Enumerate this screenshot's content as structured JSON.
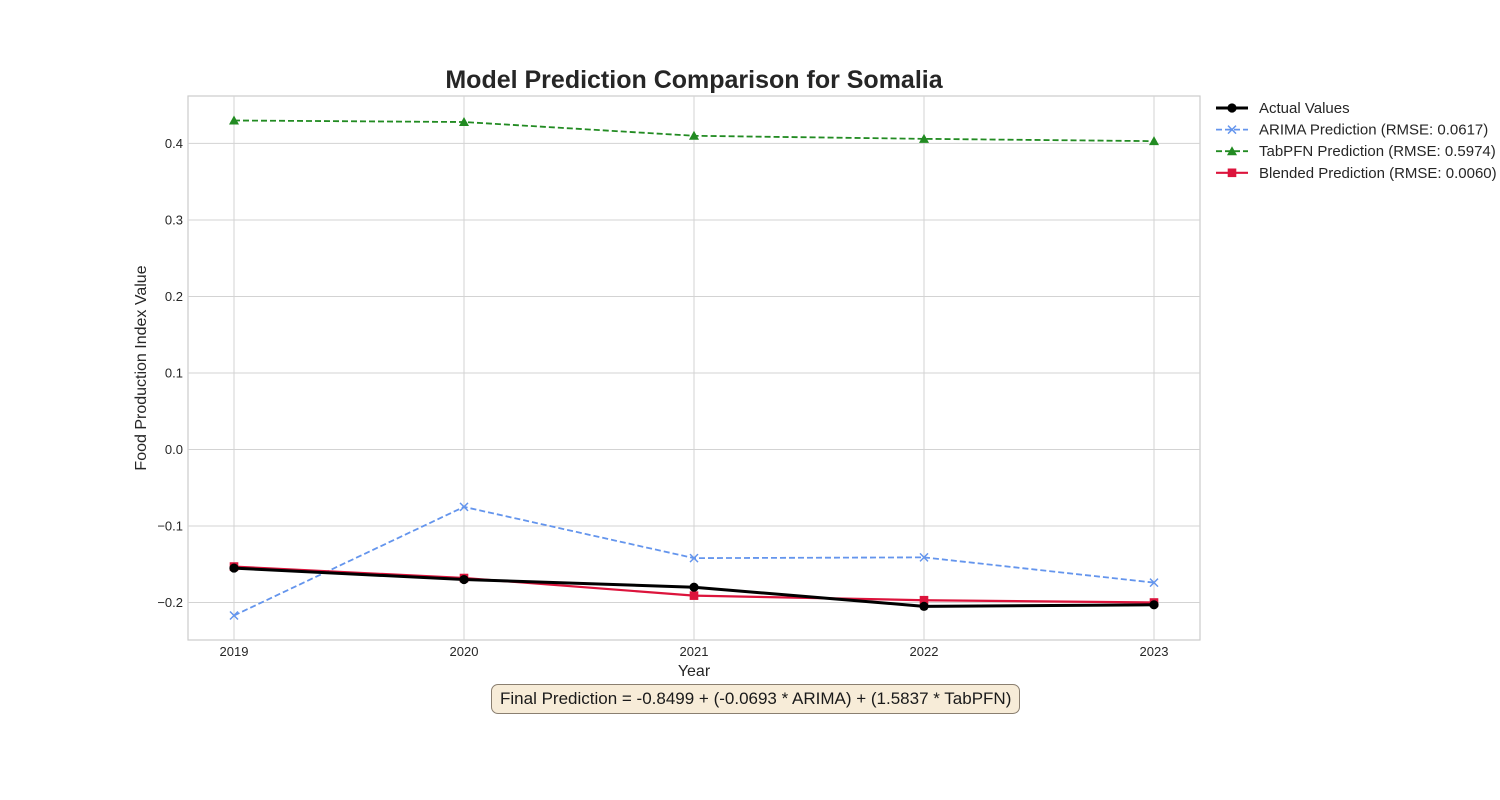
{
  "chart_data": {
    "type": "line",
    "title": "Model Prediction Comparison for Somalia",
    "xlabel": "Year",
    "ylabel": "Food Production Index Value",
    "x": [
      2019,
      2020,
      2021,
      2022,
      2023
    ],
    "x_ticks": [
      "2019",
      "2020",
      "2021",
      "2022",
      "2023"
    ],
    "xlim": [
      2018.8,
      2023.2
    ],
    "ylim": [
      -0.249,
      0.462
    ],
    "y_ticks": [
      0.4,
      0.3,
      0.2,
      0.1,
      0.0,
      -0.1,
      -0.2
    ],
    "y_tick_labels": [
      "0.4",
      "0.3",
      "0.2",
      "0.1",
      "0.0",
      "−0.1",
      "−0.2"
    ],
    "grid": true,
    "legend_position": "outside-top-right",
    "series": [
      {
        "name": "Actual Values",
        "values": [
          -0.155,
          -0.17,
          -0.18,
          -0.205,
          -0.203
        ],
        "color": "#000000",
        "marker": "circle",
        "dash": "solid",
        "width": 3
      },
      {
        "name": "ARIMA Prediction (RMSE: 0.0617)",
        "values": [
          -0.217,
          -0.075,
          -0.142,
          -0.141,
          -0.174
        ],
        "color": "#6495ed",
        "marker": "x",
        "dash": "dashed",
        "width": 1.8
      },
      {
        "name": "TabPFN Prediction (RMSE: 0.5974)",
        "values": [
          0.43,
          0.428,
          0.41,
          0.406,
          0.403
        ],
        "color": "#228b22",
        "marker": "triangle",
        "dash": "dashed",
        "width": 1.8
      },
      {
        "name": "Blended Prediction (RMSE: 0.0060)",
        "values": [
          -0.153,
          -0.168,
          -0.191,
          -0.197,
          -0.2
        ],
        "color": "#dc143c",
        "marker": "square",
        "dash": "solid",
        "width": 2.2
      }
    ],
    "annotation": "Final Prediction = -0.8499 + (-0.0693 * ARIMA) + (1.5837 * TabPFN)"
  }
}
